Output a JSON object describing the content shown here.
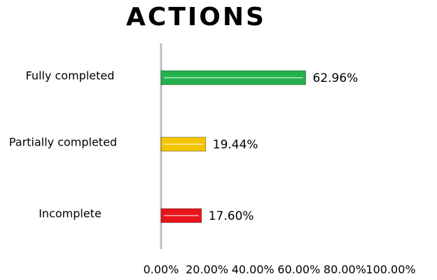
{
  "chart_data": {
    "type": "bar",
    "orientation": "horizontal",
    "title": "ACTIONS",
    "categories": [
      "Fully completed",
      "Partially completed",
      "Incomplete"
    ],
    "values": [
      62.96,
      19.44,
      17.6
    ],
    "value_labels": [
      "62.96%",
      "19.44%",
      "17.60%"
    ],
    "colors": [
      "#22b14c",
      "#f5c400",
      "#e8141b"
    ],
    "xlim": [
      0,
      100
    ],
    "xticks": [
      {
        "value": 0,
        "label": "0.00%"
      },
      {
        "value": 20,
        "label": "20.00%"
      },
      {
        "value": 40,
        "label": "40.00%"
      },
      {
        "value": 60,
        "label": "60.00%"
      },
      {
        "value": 80,
        "label": "80.00%"
      },
      {
        "value": 100,
        "label": "100.00%"
      }
    ],
    "grid": false
  }
}
